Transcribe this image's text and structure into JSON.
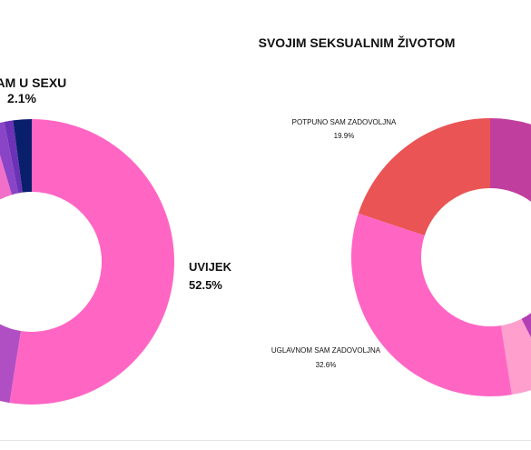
{
  "chart_data": [
    {
      "type": "pie",
      "donut": true,
      "title": "",
      "slices": [
        {
          "label": "UVIJEK",
          "percent": "52.5%",
          "value": 52.5,
          "color": "#ff66c4"
        },
        {
          "label": "",
          "percent": "",
          "value": 5.5,
          "color": "#b04fc3"
        },
        {
          "label": "",
          "percent": "",
          "value": 37.4,
          "color": "#f26fc9"
        },
        {
          "label": "",
          "percent": "",
          "value": 1.5,
          "color": "#8a44c6"
        },
        {
          "label": "",
          "percent": "",
          "value": 1.0,
          "color": "#6b32b7"
        },
        {
          "label": "ŽIVAM U SEXU",
          "percent": "2.1%",
          "value": 2.1,
          "color": "#0a1f6b"
        }
      ]
    },
    {
      "type": "pie",
      "donut": true,
      "title": "SVOJIM SEKSUALNIM ŽIVOTOM",
      "slices": [
        {
          "label": "",
          "percent": "",
          "value": 11.0,
          "color": "#c03f9e"
        },
        {
          "label": "",
          "percent": "",
          "value": 31.5,
          "color": "#b23fb5"
        },
        {
          "label": "",
          "percent": "",
          "value": 5.0,
          "color": "#ff9fce"
        },
        {
          "label": "UGLAVNOM SAM ZADOVOLJNA",
          "percent": "32.6%",
          "value": 32.6,
          "color": "#ff66c4"
        },
        {
          "label": "POTPUNO SAM ZADOVOLJNA",
          "percent": "19.9%",
          "value": 19.9,
          "color": "#ea5455"
        }
      ]
    }
  ]
}
